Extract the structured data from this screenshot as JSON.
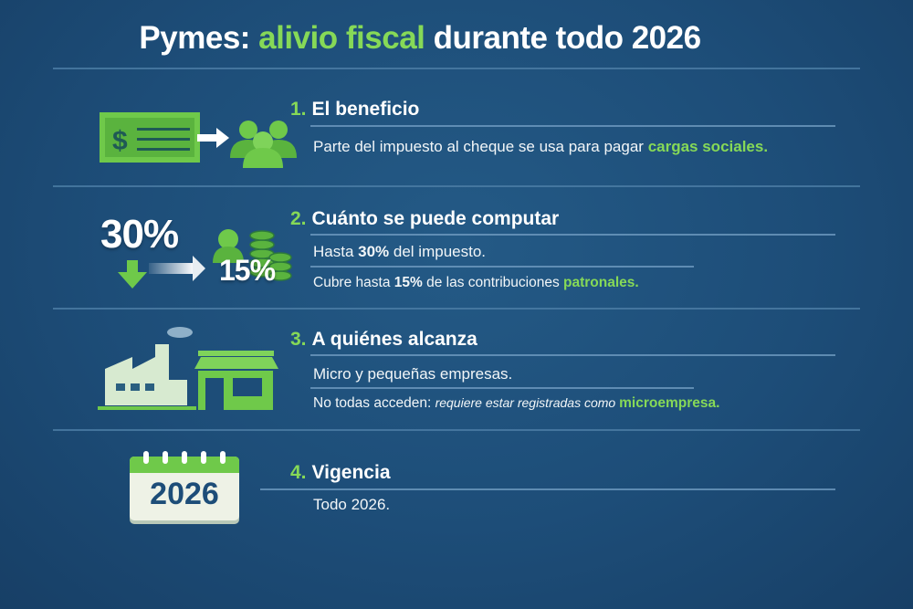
{
  "title": {
    "part1": "Pymes: ",
    "highlight": "alivio fiscal",
    "part2": " durante todo 2026"
  },
  "colors": {
    "background": "#1d4d78",
    "accent": "#86d957"
  },
  "sections": [
    {
      "number": "1.",
      "heading": "El beneficio",
      "icon": "check-to-people-icon",
      "line1": {
        "text": "Parte del impuesto al cheque se usa para pagar ",
        "highlight": "cargas sociales."
      }
    },
    {
      "number": "2.",
      "heading": "Cuánto se puede computar",
      "icon": "percent-coins-icon",
      "icon_labels": {
        "big": "30%",
        "small": "15%"
      },
      "line1": {
        "pre": "Hasta ",
        "bold": "30%",
        "post": " del impuesto."
      },
      "line2": {
        "pre": "Cubre hasta ",
        "bold": "15%",
        "mid": " de las contribuciones ",
        "highlight": "patronales."
      }
    },
    {
      "number": "3.",
      "heading": "A quiénes alcanza",
      "icon": "factory-store-icon",
      "line1": {
        "text": "Micro y pequeñas empresas."
      },
      "line2": {
        "pre": "No todas acceden: ",
        "italic": "requiere estar registradas como ",
        "highlight": "microempresa."
      }
    },
    {
      "number": "4.",
      "heading": "Vigencia",
      "icon": "calendar-icon",
      "icon_labels": {
        "year": "2026"
      },
      "line1": {
        "text": "Todo 2026."
      }
    }
  ]
}
